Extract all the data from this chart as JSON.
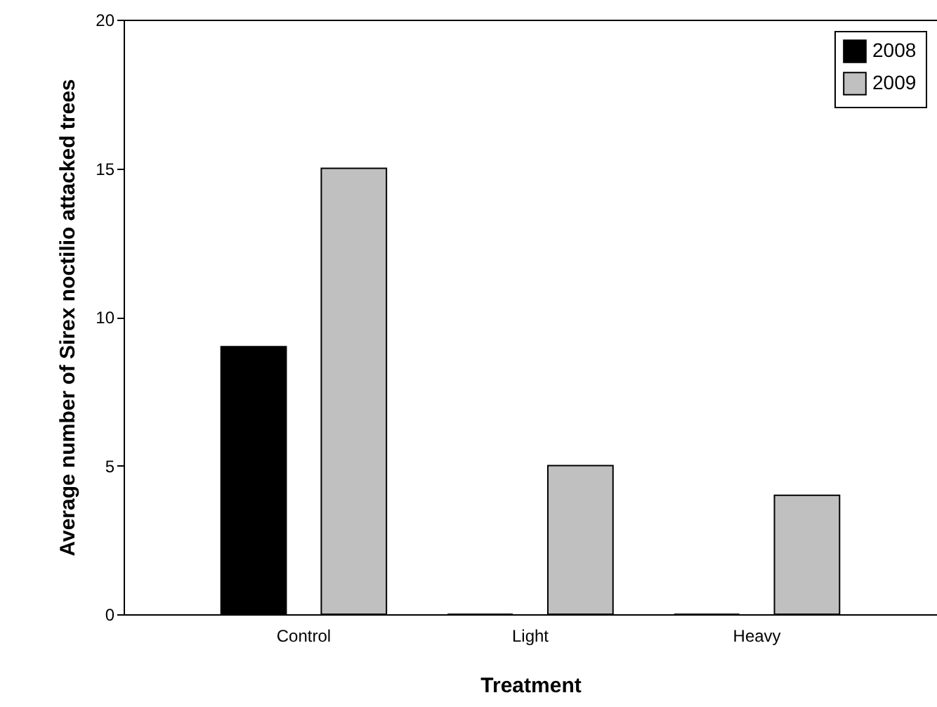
{
  "chart_data": {
    "type": "bar",
    "xlabel": "Treatment",
    "ylabel": "Average number of Sirex noctilio attacked trees",
    "categories": [
      "Control",
      "Light",
      "Heavy"
    ],
    "series": [
      {
        "name": "2008",
        "color": "#000000",
        "values": [
          9,
          0,
          0
        ]
      },
      {
        "name": "2009",
        "color": "#c0c0c0",
        "values": [
          15,
          5,
          4
        ]
      }
    ],
    "ylim": [
      0,
      20
    ],
    "yticks": [
      0,
      5,
      10,
      15,
      20
    ],
    "grid": false,
    "legend": "top right"
  }
}
